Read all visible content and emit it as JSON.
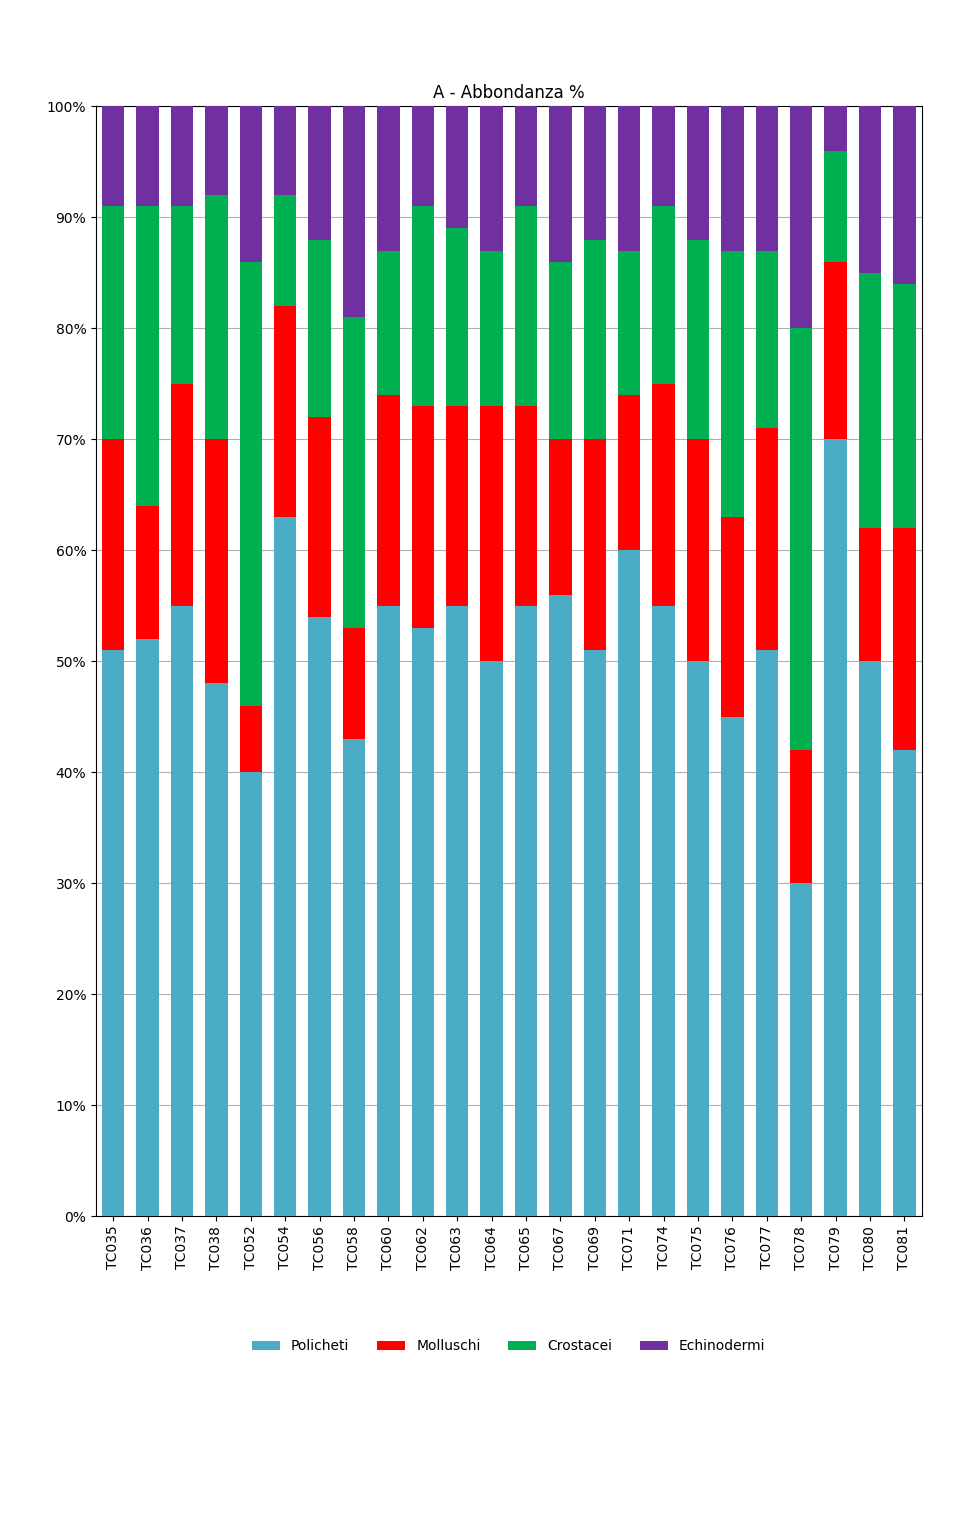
{
  "chart_data": {
    "type": "bar",
    "title": "A - Abbondanza %",
    "stacked": true,
    "grid": true,
    "legend": "upper center",
    "categories": [
      "TC035",
      "TC036",
      "TC037",
      "TC038",
      "TC052",
      "TC054",
      "TC056",
      "TC058",
      "TC060",
      "TC062",
      "TC063",
      "TC064",
      "TC065",
      "TC067",
      "TC069",
      "TC071",
      "TC074",
      "TC075",
      "TC076",
      "TC077",
      "TC078",
      "TC079",
      "TC080",
      "TC081"
    ],
    "series": [
      {
        "name": "Policheti",
        "color": "#4BACC6",
        "values": [
          51,
          52,
          55,
          48,
          40,
          63,
          54,
          43,
          55,
          53,
          55,
          50,
          55,
          56,
          51,
          60,
          55,
          50,
          45,
          51,
          30,
          70,
          50,
          42
        ]
      },
      {
        "name": "Molluschi",
        "color": "#FF0000",
        "values": [
          19,
          12,
          20,
          22,
          6,
          19,
          18,
          10,
          19,
          20,
          18,
          23,
          18,
          14,
          19,
          14,
          20,
          20,
          18,
          20,
          12,
          16,
          12,
          20
        ]
      },
      {
        "name": "Crostacei",
        "color": "#00B050",
        "values": [
          21,
          27,
          16,
          22,
          40,
          10,
          16,
          28,
          13,
          18,
          16,
          14,
          18,
          16,
          18,
          13,
          16,
          18,
          24,
          16,
          38,
          10,
          23,
          22
        ]
      },
      {
        "name": "Echinodermi",
        "color": "#7030A0",
        "values": [
          9,
          9,
          9,
          8,
          14,
          8,
          12,
          19,
          13,
          9,
          11,
          13,
          9,
          14,
          12,
          13,
          9,
          12,
          13,
          13,
          20,
          4,
          15,
          16
        ]
      }
    ],
    "ylim": [
      0,
      100
    ],
    "yticks": [
      {
        "value": 0,
        "label": "0%"
      },
      {
        "value": 10,
        "label": "10%"
      },
      {
        "value": 20,
        "label": "20%"
      },
      {
        "value": 30,
        "label": "30%"
      },
      {
        "value": 40,
        "label": "40%"
      },
      {
        "value": 50,
        "label": "50%"
      },
      {
        "value": 60,
        "label": "60%"
      },
      {
        "value": 70,
        "label": "70%"
      },
      {
        "value": 80,
        "label": "80%"
      },
      {
        "value": 90,
        "label": "90%"
      },
      {
        "value": 100,
        "label": "100%"
      }
    ]
  }
}
